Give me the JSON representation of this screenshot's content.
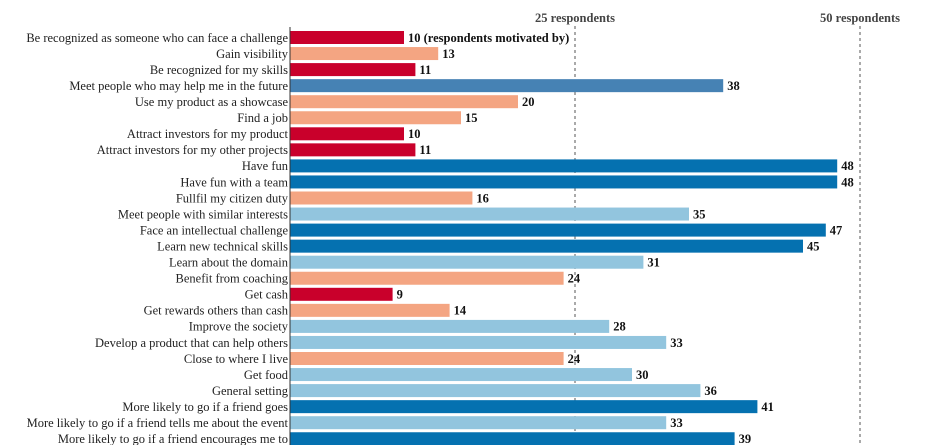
{
  "chart_data": {
    "type": "bar",
    "orientation": "horizontal",
    "xlim": [
      0,
      50
    ],
    "grid": false,
    "reference_lines": [
      {
        "value": 25,
        "label": "25 respondents"
      },
      {
        "value": 50,
        "label": "50 respondents"
      }
    ],
    "first_value_suffix": "(respondents motivated by)",
    "colors": {
      "red": "#c9002b",
      "salmon": "#f4a582",
      "steel_blue": "#4682b4",
      "dark_blue": "#0571b0",
      "light_blue": "#92c5de"
    },
    "categories": [
      "Be recognized as someone who can face a challenge",
      "Gain visibility",
      "Be recognized for my skills",
      "Meet people who may help me in the future",
      "Use my product as a showcase",
      "Find a job",
      "Attract investors for my product",
      "Attract investors for my other projects",
      "Have fun",
      "Have fun with a team",
      "Fullfil my citizen duty",
      "Meet people with similar interests",
      "Face an intellectual challenge",
      "Learn new technical skills",
      "Learn about the domain",
      "Benefit from coaching",
      "Get cash",
      "Get rewards others than cash",
      "Improve the society",
      "Develop a product that can help others",
      "Close to where I live",
      "Get food",
      "General setting",
      "More likely to go if a friend goes",
      "More likely to go if a friend tells me about the event",
      "More likely to go if a friend encourages me to"
    ],
    "values": [
      10,
      13,
      11,
      38,
      20,
      15,
      10,
      11,
      48,
      48,
      16,
      35,
      47,
      45,
      31,
      24,
      9,
      14,
      28,
      33,
      24,
      30,
      36,
      41,
      33,
      39
    ],
    "bar_colors": [
      "red",
      "salmon",
      "red",
      "steel_blue",
      "salmon",
      "salmon",
      "red",
      "red",
      "dark_blue",
      "dark_blue",
      "salmon",
      "light_blue",
      "dark_blue",
      "dark_blue",
      "light_blue",
      "salmon",
      "red",
      "salmon",
      "light_blue",
      "light_blue",
      "salmon",
      "light_blue",
      "light_blue",
      "dark_blue",
      "light_blue",
      "dark_blue"
    ]
  }
}
